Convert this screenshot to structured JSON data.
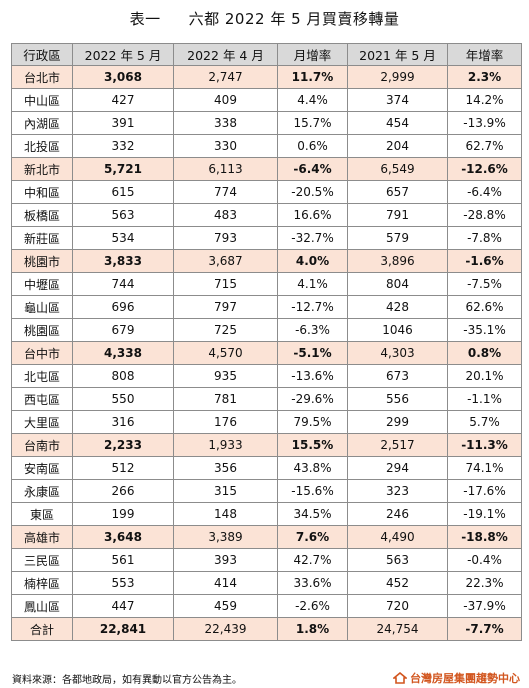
{
  "title": {
    "label": "表一",
    "text": "六都 2022 年 5 月買賣移轉量"
  },
  "headers": [
    "行政區",
    "2022 年 5 月",
    "2022 年 4 月",
    "月增率",
    "2021 年 5 月",
    "年增率"
  ],
  "rows": [
    {
      "type": "city",
      "cells": [
        "台北市",
        "3,068",
        "2,747",
        "11.7%",
        "2,999",
        "2.3%"
      ]
    },
    {
      "type": "district",
      "cells": [
        "中山區",
        "427",
        "409",
        "4.4%",
        "374",
        "14.2%"
      ]
    },
    {
      "type": "district",
      "cells": [
        "內湖區",
        "391",
        "338",
        "15.7%",
        "454",
        "-13.9%"
      ]
    },
    {
      "type": "district",
      "cells": [
        "北投區",
        "332",
        "330",
        "0.6%",
        "204",
        "62.7%"
      ]
    },
    {
      "type": "city",
      "cells": [
        "新北市",
        "5,721",
        "6,113",
        "-6.4%",
        "6,549",
        "-12.6%"
      ]
    },
    {
      "type": "district",
      "cells": [
        "中和區",
        "615",
        "774",
        "-20.5%",
        "657",
        "-6.4%"
      ]
    },
    {
      "type": "district",
      "cells": [
        "板橋區",
        "563",
        "483",
        "16.6%",
        "791",
        "-28.8%"
      ]
    },
    {
      "type": "district",
      "cells": [
        "新莊區",
        "534",
        "793",
        "-32.7%",
        "579",
        "-7.8%"
      ]
    },
    {
      "type": "city",
      "cells": [
        "桃園市",
        "3,833",
        "3,687",
        "4.0%",
        "3,896",
        "-1.6%"
      ]
    },
    {
      "type": "district",
      "cells": [
        "中壢區",
        "744",
        "715",
        "4.1%",
        "804",
        "-7.5%"
      ]
    },
    {
      "type": "district",
      "cells": [
        "龜山區",
        "696",
        "797",
        "-12.7%",
        "428",
        "62.6%"
      ]
    },
    {
      "type": "district",
      "cells": [
        "桃園區",
        "679",
        "725",
        "-6.3%",
        "1046",
        "-35.1%"
      ]
    },
    {
      "type": "city",
      "cells": [
        "台中市",
        "4,338",
        "4,570",
        "-5.1%",
        "4,303",
        "0.8%"
      ]
    },
    {
      "type": "district",
      "cells": [
        "北屯區",
        "808",
        "935",
        "-13.6%",
        "673",
        "20.1%"
      ]
    },
    {
      "type": "district",
      "cells": [
        "西屯區",
        "550",
        "781",
        "-29.6%",
        "556",
        "-1.1%"
      ]
    },
    {
      "type": "district",
      "cells": [
        "大里區",
        "316",
        "176",
        "79.5%",
        "299",
        "5.7%"
      ]
    },
    {
      "type": "city",
      "cells": [
        "台南市",
        "2,233",
        "1,933",
        "15.5%",
        "2,517",
        "-11.3%"
      ]
    },
    {
      "type": "district",
      "cells": [
        "安南區",
        "512",
        "356",
        "43.8%",
        "294",
        "74.1%"
      ]
    },
    {
      "type": "district",
      "cells": [
        "永康區",
        "266",
        "315",
        "-15.6%",
        "323",
        "-17.6%"
      ]
    },
    {
      "type": "district",
      "cells": [
        "東區",
        "199",
        "148",
        "34.5%",
        "246",
        "-19.1%"
      ]
    },
    {
      "type": "city",
      "cells": [
        "高雄市",
        "3,648",
        "3,389",
        "7.6%",
        "4,490",
        "-18.8%"
      ]
    },
    {
      "type": "district",
      "cells": [
        "三民區",
        "561",
        "393",
        "42.7%",
        "563",
        "-0.4%"
      ]
    },
    {
      "type": "district",
      "cells": [
        "楠梓區",
        "553",
        "414",
        "33.6%",
        "452",
        "22.3%"
      ]
    },
    {
      "type": "district",
      "cells": [
        "鳳山區",
        "447",
        "459",
        "-2.6%",
        "720",
        "-37.9%"
      ]
    },
    {
      "type": "total",
      "cells": [
        "合計",
        "22,841",
        "22,439",
        "1.8%",
        "24,754",
        "-7.7%"
      ]
    }
  ],
  "footer": {
    "source": "資料來源：各都地政局，如有異動以官方公告為主。",
    "brand": "台灣房屋集團趨勢中心",
    "brand_color": "#d2561f"
  }
}
